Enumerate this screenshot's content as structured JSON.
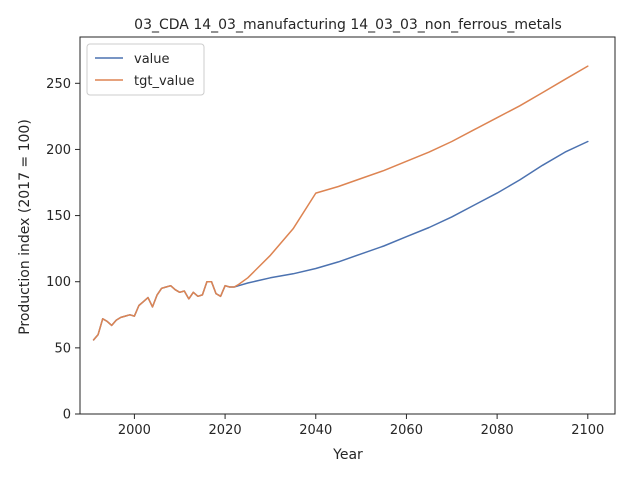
{
  "chart_data": {
    "type": "line",
    "title": "03_CDA 14_03_manufacturing 14_03_03_non_ferrous_metals",
    "xlabel": "Year",
    "ylabel": "Production index (2017 = 100)",
    "xlim": [
      1988,
      2106
    ],
    "ylim": [
      0,
      285
    ],
    "xticks": [
      2000,
      2020,
      2040,
      2060,
      2080,
      2100
    ],
    "yticks": [
      0,
      50,
      100,
      150,
      200,
      250
    ],
    "grid": false,
    "legend_position": "top-left",
    "series": [
      {
        "name": "value",
        "color": "#4c72b0",
        "x": [
          1991,
          1992,
          1993,
          1994,
          1995,
          1996,
          1997,
          1998,
          1999,
          2000,
          2001,
          2002,
          2003,
          2004,
          2005,
          2006,
          2007,
          2008,
          2009,
          2010,
          2011,
          2012,
          2013,
          2014,
          2015,
          2016,
          2017,
          2018,
          2019,
          2020,
          2021,
          2022,
          2023,
          2025,
          2030,
          2035,
          2040,
          2045,
          2050,
          2055,
          2060,
          2065,
          2070,
          2075,
          2080,
          2085,
          2090,
          2095,
          2100
        ],
        "y": [
          56,
          60,
          72,
          70,
          67,
          71,
          73,
          74,
          75,
          74,
          82,
          85,
          88,
          81,
          90,
          95,
          96,
          97,
          94,
          92,
          93,
          87,
          92,
          89,
          90,
          100,
          100,
          91,
          89,
          97,
          96,
          96,
          97,
          99,
          103,
          106,
          110,
          115,
          121,
          127,
          134,
          141,
          149,
          158,
          167,
          177,
          188,
          198,
          206
        ]
      },
      {
        "name": "tgt_value",
        "color": "#dd8452",
        "x": [
          1991,
          1992,
          1993,
          1994,
          1995,
          1996,
          1997,
          1998,
          1999,
          2000,
          2001,
          2002,
          2003,
          2004,
          2005,
          2006,
          2007,
          2008,
          2009,
          2010,
          2011,
          2012,
          2013,
          2014,
          2015,
          2016,
          2017,
          2018,
          2019,
          2020,
          2021,
          2022,
          2023,
          2025,
          2030,
          2035,
          2040,
          2045,
          2050,
          2055,
          2060,
          2065,
          2070,
          2075,
          2080,
          2085,
          2090,
          2095,
          2100
        ],
        "y": [
          56,
          60,
          72,
          70,
          67,
          71,
          73,
          74,
          75,
          74,
          82,
          85,
          88,
          81,
          90,
          95,
          96,
          97,
          94,
          92,
          93,
          87,
          92,
          89,
          90,
          100,
          100,
          91,
          89,
          97,
          96,
          96,
          98,
          103,
          120,
          140,
          167,
          172,
          178,
          184,
          191,
          198,
          206,
          215,
          224,
          233,
          243,
          253,
          263
        ]
      }
    ]
  }
}
